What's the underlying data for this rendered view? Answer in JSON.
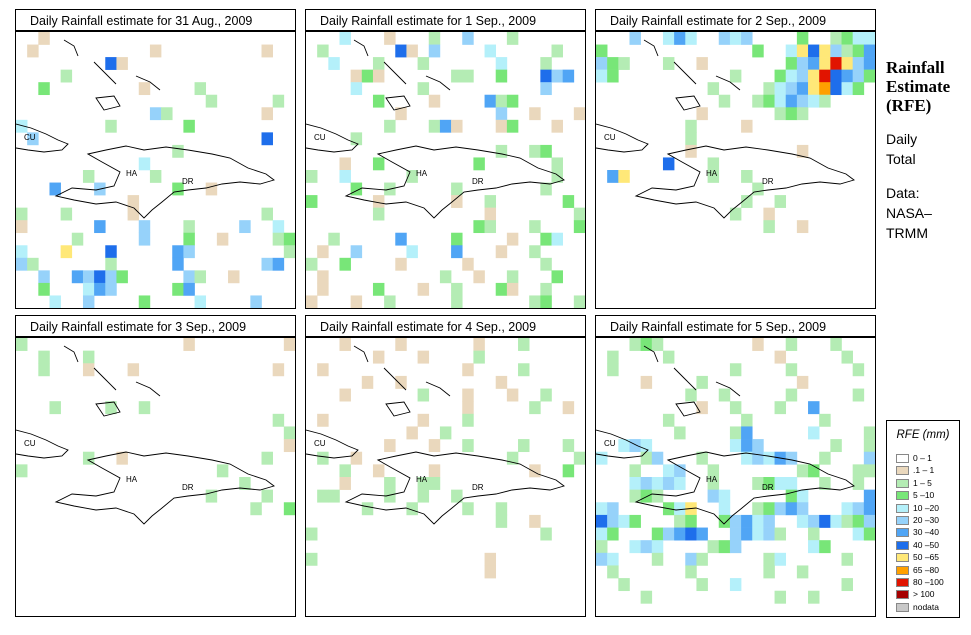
{
  "panels": [
    {
      "title": "Daily Rainfall estimate for  31 Aug., 2009"
    },
    {
      "title": "Daily Rainfall estimate for  1 Sep., 2009"
    },
    {
      "title": "Daily Rainfall estimate for  2 Sep., 2009"
    },
    {
      "title": "Daily Rainfall estimate for  3 Sep., 2009"
    },
    {
      "title": "Daily Rainfall estimate for  4 Sep., 2009"
    },
    {
      "title": "Daily Rainfall estimate for  5 Sep., 2009"
    }
  ],
  "map_labels": {
    "cuba": "CU",
    "haiti": "HA",
    "dominican_republic": "DR"
  },
  "side": {
    "title_line1": "Rainfall",
    "title_line2": "Estimate",
    "title_line3": "(RFE)",
    "sub1": "Daily",
    "sub2": "Total",
    "data1": "Data:",
    "data2": "NASA–",
    "data3": "TRMM"
  },
  "legend": {
    "title": "RFE (mm)",
    "items": [
      {
        "label": "0 – 1",
        "color": "#ffffff"
      },
      {
        "label": ".1 – 1",
        "color": "#ead8bd"
      },
      {
        "label": "1 – 5",
        "color": "#b4ecb4"
      },
      {
        "label": "5 –10",
        "color": "#78e678"
      },
      {
        "label": "10 –20",
        "color": "#b4f0fa"
      },
      {
        "label": "20 –30",
        "color": "#96d2fa"
      },
      {
        "label": "30 –40",
        "color": "#50a5f5"
      },
      {
        "label": "40 –50",
        "color": "#1e6eeb"
      },
      {
        "label": "50 –65",
        "color": "#ffe878"
      },
      {
        "label": "65 –80",
        "color": "#ffa000"
      },
      {
        "label": "80 –100",
        "color": "#e11400"
      },
      {
        "label": "> 100",
        "color": "#a50000"
      },
      {
        "label": "nodata",
        "color": "#c8c8c8"
      }
    ]
  },
  "rainfall_grids": [
    {
      "cols": 25,
      "rows": 22,
      "cells": "[2 B 20 3 B 10 B 5 A 3 0 B A 4 3 2 H B 5 7 3 4 C 4 5 3 5 5 D 5 3 B 4 C 9 5 7 3 A C 5 C 5 2 6 F C 8 B 2 E 3 4 C 3 3 D 4 6 F 7 5 6 2 H 4 3 2 7 C 9 4 2 3 3 E 2 7 3 4 3 C 5 C 6 2 7 G 3 F 6 D 2 B 14 A 2 B 5 A 2 6 C 3 C 2 A 2 B 4 A 3 A 2 C 2 B 3 A 2 G A 2 F A 2 C A 3 F 2 E 6 C 5 F 3 D 2 B 4 C D E 3 I 3 H 5 G F 8 C F C 2 A 3 C 2 3 G 4 3 F G 3 F 2 G F H F D 2 3 F C 2 B 4 3 D 3 E G F 5 D G 3 5 4 E 2 F 4 D 4 E 4 F 3 E 2 B 3 B 4 E F G H E 5 I 5 E 4 E 5 C 2 B 3 B D 5 F 4 E 2 B D C 2 2 C D 3 B 2 C 2 C E 4 E 3 3 B 4 A 2 B 3 C 4 D 3 C 4 A C 2 A 4 E C 2 A 7 5 3 B C 3 C 4 A 2 D 2 C 2 A 3 B 6 C 3 C 3 B 11 C 3 C D B C 2 C 14 C 2 D B C 4 C B 3 B 2 C 8 D 12 C 3 B 2 C 2 D 8 C 6 B 8 C 19 B 19 B 24 B 12 B 15 ]"
    },
    {
      "cols": 25,
      "rows": 22,
      "cells": "[3 E 3 B 3 C 2 F 3 C 7 C 6 H B A F 4 E 3 2 C 4 E 3 C 2 A C 2 4 E 3 C 3 2 2 B D B 2 4 C C 2 D 3 H F G 2 3 E 5 C 4 A 2 3 F 2 3 2 2 D 4 B 4 G C D 3 2 4 2 3 B 3 3 2 F 2 B 3 B 4 3 C 3 C G B 3 B D 3 B 6 C 5 6 2 2 5 3 3 6 5 C 2 C D 6 B 2 D 3 A 4 D 3 3 C 2 C 2 E 5 C 7 A 4 C 2 4 D 2 C 5 C 7 C 3 D 5 B 2 4 B 2 C 6 D 2 5 C 2 4 3 B 5 2 C 3 2 5 3 2 D C 3 C 3 D 2 C 5 G 4 D 4 B 2 D E 3 B 2 F 4 E 3 G 3 B 2 C 4 C 2 D 4 B 2 3 B 2 4 C 4 B 4 3 3 C 2 B 2 C 3 D 3 B 4 D 3 B 2 C 3 D B 2 C 3 B 3 B 2 C 5 C 2 4 C D 2 C D C 2 3 B 5 3 C 2 C 2 3 C 2 3 C 3 C 2 B 3 C D C 3 C 3 C 2 C 5 C C 2 6 C 4 C 10 B 14 C 10 B 2 B 4 C 24 B 7 C 27 B 24 B 24 B 24 B 24 B 13 ]"
    },
    {
      "cols": 25,
      "rows": 22,
      "cells": "[3 F 2 E G E 2 F E F 4 D 2 C D E E D 13 D 2 E I H I F C D G F D C 3 C 2 B 7 D F G I K I F G E D 10 C 3 D E F I K H G F D 10 C 4 C E F G I J H E D 12 C 2 C D E G F E C 13 B 6 C D C 14 C 4 B 19 C 24 B 9 B 12 H 3 C 15 G I 7 C 2 C 25 C 23 C 2 C 20 C 2 B 24 C 2 B 150 ]"
    },
    {
      "cols": 25,
      "rows": 22,
      "cells": "[C 14 B 8 B 2 C 3 C 20 C 3 B 3 B 12 B 54 C 4 C 2 C 36 C 25 C 24 B 6 C 2 B 12 C 2 C 17 C 26 C 21 C 4 C 23 C 2 D 150 ]"
    },
    {
      "cols": 25,
      "rows": 22,
      "cells": "[ 3 B 4 B 6 B 3 C 11 B 3 B 4 C 10 B 12 B 4 C 10 B 2 B 8 B 10 B 6 C 3 B 3 B 2 C 17 B 5 C 2 B 2 B 8 B 3 C 19 B 2 C 19 B 3 B 2 C 4 C 3 C 2 C 2 B 13 C 5 C 3 C 2 B 4 B 8 B 2 D 4 B 3 C 2 C C 14 C C 4 C 2 C 2 C 16 C 3 C 4 C 2 C 24 C 2 B 4 C 20 C 28 C 15 B 24 B 35 ]"
    },
    {
      "cols": 25,
      "rows": 22,
      "cells": "[3 C D C 8 B 2 C 3 C 4 C 4 C 9 B 5 C 3 C 10 C 4 C 5 C 5 B 4 C 8 B 14 C 2 C 5 C 5 C 10 B 2 C 3 C 2 G 11 C 6 C 6 C 11 C 4 C G 5 E 4 C 2 E F E 7 E G F 6 C 2 C E 3 C F 3 C 3 E F E G F 2 C 3 F 3 C 2 E F 2 C 7 C D 3 C C 3 E F E F E 2 C 3 C D E E 2 C 2 C 4 C D C 4 F E 5 D E 2 3 G E F 4 D E I 2 E 2 C D F G F 3 E F G H F E D 3 C D 2 D F G E F 2 E F H E C D F E D 3 D F G H G 2 F G E F C 2 C 3 E D C 2 E F E 4 C D F 6 E D 4 F E 3 C 2 F C 5 C E 5 C 3 C 6 C 6 C 2 C 8 C 6 C 2 E 9 C 6 C 11 C 2 C 50 ]"
    }
  ]
}
